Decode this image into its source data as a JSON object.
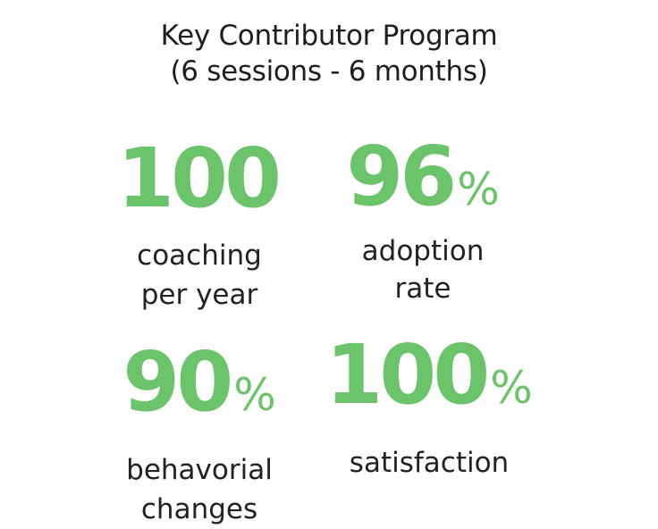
{
  "title": {
    "line1": "Key Contributor Program",
    "line2": "(6 sessions - 6 months)"
  },
  "accent_color": "#6cc46a",
  "stats": [
    {
      "value": "100",
      "unit": "",
      "label_line1": "coaching",
      "label_line2": "per year"
    },
    {
      "value": "96",
      "unit": "%",
      "label_line1": "adoption",
      "label_line2": "rate"
    },
    {
      "value": "90",
      "unit": "%",
      "label_line1": "behavorial",
      "label_line2": "changes"
    },
    {
      "value": "100",
      "unit": "%",
      "label_line1": "satisfaction",
      "label_line2": ""
    }
  ]
}
